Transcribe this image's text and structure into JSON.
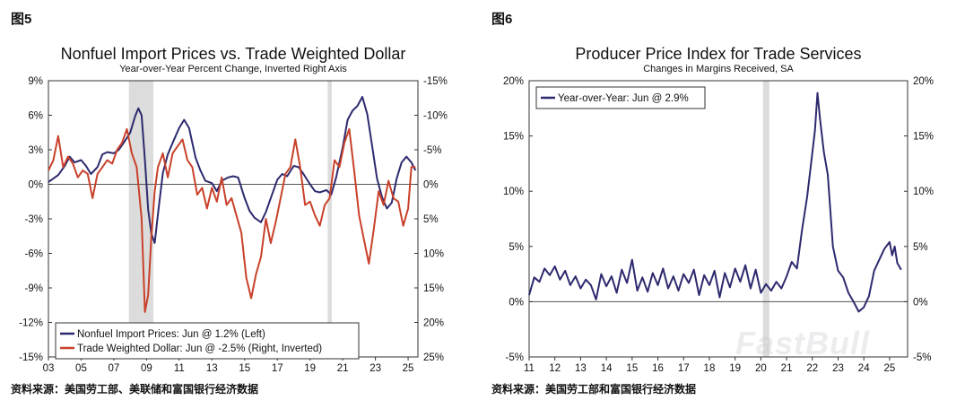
{
  "left": {
    "fig_label": "图5",
    "source": "资料来源：美国劳工部、美联储和富国银行经济数据",
    "chart_data": {
      "type": "line",
      "title": "Nonfuel Import Prices vs. Trade Weighted Dollar",
      "subtitle": "Year-over-Year Percent Change, Inverted Right Axis",
      "xlim": [
        2003.0,
        2025.6
      ],
      "ylim": [
        -15,
        9
      ],
      "y_ticks": [
        9,
        6,
        3,
        0,
        -3,
        -6,
        -9,
        -12,
        -15
      ],
      "y_tick_labels": [
        "9%",
        "6%",
        "3%",
        "0%",
        "-3%",
        "-6%",
        "-9%",
        "-12%",
        "-15%"
      ],
      "y2_tick_labels": [
        "-15%",
        "-10%",
        "-5%",
        "0%",
        "5%",
        "10%",
        "15%",
        "20%",
        "25%"
      ],
      "y2_ticks": [
        -15,
        -10,
        -5,
        0,
        5,
        10,
        15,
        20,
        25
      ],
      "y2_inverted": true,
      "x_ticks": [
        2003,
        2005,
        2007,
        2009,
        2011,
        2013,
        2015,
        2017,
        2019,
        2021,
        2023,
        2025
      ],
      "x_tick_labels": [
        "03",
        "05",
        "07",
        "09",
        "11",
        "13",
        "15",
        "17",
        "19",
        "21",
        "23",
        "25"
      ],
      "recessions": [
        [
          2007.92,
          2009.42
        ],
        [
          2020.08,
          2020.33
        ]
      ],
      "legend_position": "bottom-left",
      "series": [
        {
          "name": "Nonfuel Import Prices: Jun @ 1.2% (Left)",
          "color": "#2d2a6e",
          "axis": "left",
          "x": [
            2003.0,
            2003.3,
            2003.6,
            2004.0,
            2004.3,
            2004.6,
            2005.0,
            2005.3,
            2005.6,
            2006.0,
            2006.3,
            2006.6,
            2007.0,
            2007.3,
            2007.6,
            2008.0,
            2008.3,
            2008.5,
            2008.7,
            2008.9,
            2009.1,
            2009.3,
            2009.5,
            2009.7,
            2010.0,
            2010.3,
            2010.6,
            2011.0,
            2011.3,
            2011.6,
            2012.0,
            2012.3,
            2012.6,
            2013.0,
            2013.3,
            2013.6,
            2014.0,
            2014.3,
            2014.6,
            2015.0,
            2015.3,
            2015.6,
            2016.0,
            2016.3,
            2016.6,
            2017.0,
            2017.3,
            2017.6,
            2018.0,
            2018.3,
            2018.6,
            2019.0,
            2019.3,
            2019.6,
            2020.0,
            2020.3,
            2020.6,
            2021.0,
            2021.3,
            2021.6,
            2021.9,
            2022.2,
            2022.5,
            2022.8,
            2023.1,
            2023.4,
            2023.7,
            2024.0,
            2024.3,
            2024.6,
            2024.9,
            2025.2,
            2025.45
          ],
          "values": [
            0.2,
            0.5,
            0.8,
            1.6,
            2.4,
            1.9,
            2.1,
            1.6,
            0.9,
            1.5,
            2.6,
            2.8,
            2.7,
            3.0,
            3.6,
            4.5,
            5.9,
            6.6,
            6.0,
            2.1,
            -2.2,
            -4.3,
            -5.1,
            -2.6,
            1.0,
            2.6,
            3.6,
            4.9,
            5.6,
            4.9,
            2.3,
            1.2,
            0.3,
            0.1,
            -0.6,
            0.3,
            0.6,
            0.7,
            0.6,
            -1.2,
            -2.3,
            -2.9,
            -3.3,
            -2.4,
            -1.2,
            0.4,
            0.9,
            0.7,
            1.6,
            1.5,
            0.9,
            0.0,
            -0.6,
            -0.7,
            -0.5,
            -0.9,
            0.6,
            3.2,
            5.6,
            6.4,
            6.8,
            7.6,
            6.1,
            3.3,
            0.5,
            -1.1,
            -2.1,
            -1.6,
            0.5,
            1.9,
            2.4,
            1.9,
            1.2
          ]
        },
        {
          "name": "Trade Weighted Dollar: Jun @ -2.5% (Right, Inverted)",
          "color": "#c8412a",
          "axis": "right",
          "x": [
            2003.0,
            2003.3,
            2003.6,
            2003.9,
            2004.2,
            2004.5,
            2004.8,
            2005.1,
            2005.4,
            2005.7,
            2006.0,
            2006.3,
            2006.6,
            2006.9,
            2007.2,
            2007.5,
            2007.8,
            2008.1,
            2008.4,
            2008.7,
            2008.9,
            2009.1,
            2009.3,
            2009.5,
            2009.7,
            2010.0,
            2010.3,
            2010.6,
            2010.9,
            2011.2,
            2011.5,
            2011.8,
            2012.1,
            2012.4,
            2012.7,
            2013.0,
            2013.3,
            2013.6,
            2013.9,
            2014.2,
            2014.5,
            2014.8,
            2015.1,
            2015.4,
            2015.7,
            2016.0,
            2016.3,
            2016.6,
            2016.9,
            2017.2,
            2017.5,
            2017.8,
            2018.1,
            2018.4,
            2018.7,
            2019.0,
            2019.3,
            2019.6,
            2019.9,
            2020.2,
            2020.5,
            2020.8,
            2021.1,
            2021.4,
            2021.7,
            2022.0,
            2022.3,
            2022.6,
            2022.9,
            2023.2,
            2023.5,
            2023.8,
            2024.1,
            2024.4,
            2024.7,
            2025.0,
            2025.2,
            2025.45
          ],
          "values": [
            -2.0,
            -3.5,
            -7.0,
            -2.5,
            -4.0,
            -3.0,
            -1.0,
            -2.0,
            -1.5,
            2.0,
            -1.5,
            -2.5,
            -3.5,
            -3.0,
            -5.0,
            -6.0,
            -8.0,
            -4.5,
            -2.5,
            5.0,
            18.5,
            16.0,
            7.5,
            1.0,
            -2.5,
            -4.5,
            -1.0,
            -4.5,
            -5.5,
            -6.5,
            -3.5,
            -2.5,
            1.5,
            0.5,
            3.5,
            0.5,
            2.5,
            -1.0,
            3.0,
            2.0,
            4.5,
            7.0,
            13.5,
            16.5,
            13.0,
            10.5,
            5.0,
            8.5,
            5.5,
            2.0,
            -1.5,
            -2.5,
            -6.5,
            -2.5,
            3.0,
            2.5,
            4.5,
            6.0,
            3.0,
            2.0,
            -3.5,
            -2.5,
            -6.0,
            -8.0,
            -2.0,
            4.5,
            8.0,
            11.5,
            6.5,
            1.0,
            3.0,
            -0.5,
            2.0,
            2.5,
            6.0,
            3.5,
            -2.5,
            -2.5
          ]
        }
      ]
    }
  },
  "right": {
    "fig_label": "图6",
    "source": "资料来源：美国劳工部和富国银行经济数据",
    "watermark": "FastBull",
    "chart_data": {
      "type": "line",
      "title": "Producer Price Index for Trade Services",
      "subtitle": "Changes in Margins Received, SA",
      "xlim": [
        2011.0,
        2025.7
      ],
      "ylim": [
        -5,
        20
      ],
      "y_ticks": [
        20,
        15,
        10,
        5,
        0,
        -5
      ],
      "y_tick_labels": [
        "20%",
        "15%",
        "10%",
        "5%",
        "0%",
        "-5%"
      ],
      "y2_tick_labels": [
        "20%",
        "15%",
        "10%",
        "5%",
        "0%",
        "-5%"
      ],
      "x_ticks": [
        2011,
        2012,
        2013,
        2014,
        2015,
        2016,
        2017,
        2018,
        2019,
        2020,
        2021,
        2022,
        2023,
        2024,
        2025
      ],
      "x_tick_labels": [
        "11",
        "12",
        "13",
        "14",
        "15",
        "16",
        "17",
        "18",
        "19",
        "20",
        "21",
        "22",
        "23",
        "24",
        "25"
      ],
      "recessions": [
        [
          2020.08,
          2020.33
        ]
      ],
      "legend_position": "top-left",
      "series": [
        {
          "name": "Year-over-Year: Jun @ 2.9%",
          "color": "#2d2a6e",
          "axis": "left",
          "x": [
            2011.0,
            2011.2,
            2011.4,
            2011.6,
            2011.8,
            2012.0,
            2012.2,
            2012.4,
            2012.6,
            2012.8,
            2013.0,
            2013.2,
            2013.4,
            2013.6,
            2013.8,
            2014.0,
            2014.2,
            2014.4,
            2014.6,
            2014.8,
            2015.0,
            2015.2,
            2015.4,
            2015.6,
            2015.8,
            2016.0,
            2016.2,
            2016.4,
            2016.6,
            2016.8,
            2017.0,
            2017.2,
            2017.4,
            2017.6,
            2017.8,
            2018.0,
            2018.2,
            2018.4,
            2018.6,
            2018.8,
            2019.0,
            2019.2,
            2019.4,
            2019.6,
            2019.8,
            2020.0,
            2020.2,
            2020.4,
            2020.6,
            2020.8,
            2021.0,
            2021.2,
            2021.4,
            2021.6,
            2021.8,
            2022.0,
            2022.1,
            2022.2,
            2022.3,
            2022.45,
            2022.6,
            2022.8,
            2023.0,
            2023.2,
            2023.4,
            2023.6,
            2023.8,
            2024.0,
            2024.2,
            2024.4,
            2024.6,
            2024.8,
            2025.0,
            2025.1,
            2025.2,
            2025.3,
            2025.45
          ],
          "values": [
            0.6,
            2.2,
            1.8,
            3.0,
            2.4,
            3.2,
            2.0,
            2.8,
            1.5,
            2.3,
            1.2,
            2.0,
            1.5,
            0.2,
            2.5,
            1.4,
            2.3,
            0.8,
            2.9,
            1.7,
            3.8,
            1.0,
            2.2,
            0.9,
            2.6,
            1.5,
            3.0,
            1.2,
            2.3,
            1.0,
            2.5,
            1.7,
            2.9,
            0.6,
            2.4,
            1.5,
            2.8,
            0.4,
            2.6,
            1.3,
            3.0,
            1.8,
            3.3,
            1.2,
            2.9,
            0.8,
            1.6,
            1.0,
            1.8,
            1.2,
            2.3,
            3.6,
            3.0,
            6.5,
            9.5,
            13.5,
            15.5,
            18.9,
            16.5,
            13.5,
            11.5,
            5.0,
            2.8,
            2.2,
            0.8,
            0.0,
            -0.9,
            -0.5,
            0.5,
            2.8,
            3.8,
            4.8,
            5.4,
            4.2,
            5.0,
            3.5,
            2.9
          ]
        }
      ]
    }
  }
}
